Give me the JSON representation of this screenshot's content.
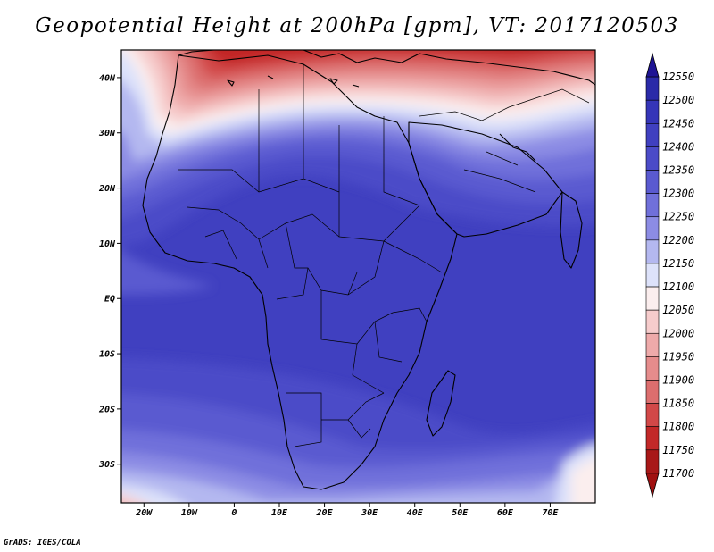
{
  "title": "Geopotential Height at 200hPa [gpm], VT: 2017120503",
  "footer": "GrADS: IGES/COLA",
  "map": {
    "lon_range": [
      -25,
      80
    ],
    "lat_range": [
      -37,
      45
    ],
    "lat_ticks": [
      {
        "value": 40,
        "label": "40N"
      },
      {
        "value": 30,
        "label": "30N"
      },
      {
        "value": 20,
        "label": "20N"
      },
      {
        "value": 10,
        "label": "10N"
      },
      {
        "value": 0,
        "label": "EQ"
      },
      {
        "value": -10,
        "label": "10S"
      },
      {
        "value": -20,
        "label": "20S"
      },
      {
        "value": -30,
        "label": "30S"
      }
    ],
    "lon_ticks": [
      {
        "value": -20,
        "label": "20W"
      },
      {
        "value": -10,
        "label": "10W"
      },
      {
        "value": 0,
        "label": "0"
      },
      {
        "value": 10,
        "label": "10E"
      },
      {
        "value": 20,
        "label": "20E"
      },
      {
        "value": 30,
        "label": "30E"
      },
      {
        "value": 40,
        "label": "40E"
      },
      {
        "value": 50,
        "label": "50E"
      },
      {
        "value": 60,
        "label": "60E"
      },
      {
        "value": 70,
        "label": "70E"
      }
    ]
  },
  "colorbar": {
    "levels": [
      12550,
      12500,
      12450,
      12400,
      12350,
      12300,
      12250,
      12200,
      12150,
      12100,
      12050,
      12000,
      11950,
      11900,
      11850,
      11800,
      11750,
      11700
    ],
    "colors": [
      "#1e1494",
      "#2a2aa8",
      "#3535b8",
      "#4040c0",
      "#4b4bc8",
      "#5a5ad0",
      "#7070da",
      "#8c8ce4",
      "#b4b8f0",
      "#dde2fa",
      "#fbeeee",
      "#f6cccc",
      "#eeaaaa",
      "#e58c8c",
      "#dc6e6e",
      "#d24848",
      "#c22828",
      "#a81818",
      "#a01010"
    ]
  }
}
